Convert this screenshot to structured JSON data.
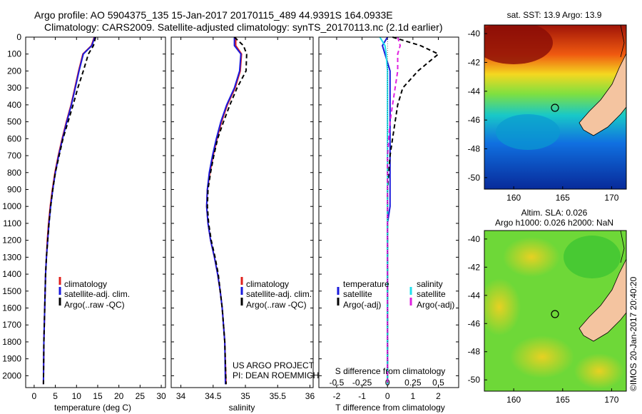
{
  "header": {
    "line1": "Argo profile: AO 5904375_135 15-Jan-2017 20170115_489 44.9391S 164.0933E",
    "line2": "Climatology: CARS2009. Satellite-adjusted climatology: synTS_20170113.nc (2.1d earlier)"
  },
  "colors": {
    "climatology": "#e0201c",
    "satellite": "#1a1adc",
    "argo": "#000000",
    "sal_satellite": "#22e0ee",
    "sal_argo": "#e020e0",
    "land": "#f4c4a0"
  },
  "chart_data": [
    {
      "type": "line",
      "ylabel_ticks": [
        "0",
        "100",
        "200",
        "300",
        "400",
        "500",
        "600",
        "700",
        "800",
        "900",
        "1000",
        "1100",
        "1200",
        "1300",
        "1400",
        "1500",
        "1600",
        "1700",
        "1800",
        "1900",
        "2000"
      ],
      "xlabel": "temperature (deg C)",
      "xticks": [
        "0",
        "5",
        "10",
        "15",
        "20",
        "25",
        "30"
      ],
      "xlim": [
        -2,
        31
      ],
      "ylim": [
        2070,
        0
      ],
      "legend": [
        "climatology",
        "satellite-adj. clim.",
        "Argo(..raw -QC)"
      ],
      "series": [
        {
          "name": "climatology",
          "style": "solid",
          "color": "#e0201c",
          "x": [
            14.2,
            13.5,
            11.5,
            10.5,
            9.6,
            8.7,
            7.6,
            6.6,
            5.7,
            4.9,
            4.3,
            3.8,
            3.4,
            3.1,
            2.9,
            2.7,
            2.6,
            2.5,
            2.4,
            2.3,
            2.2
          ],
          "y": [
            0,
            50,
            100,
            200,
            300,
            400,
            500,
            600,
            700,
            800,
            900,
            1000,
            1100,
            1200,
            1300,
            1400,
            1500,
            1600,
            1700,
            1800,
            2050
          ]
        },
        {
          "name": "satellite-adj. clim.",
          "style": "solid",
          "color": "#1a1adc",
          "x": [
            14.3,
            13.6,
            11.6,
            10.6,
            9.7,
            8.8,
            7.7,
            6.7,
            5.8,
            5.0,
            4.4,
            3.9,
            3.5,
            3.2,
            2.9,
            2.7,
            2.6,
            2.5,
            2.4,
            2.3,
            2.2
          ],
          "y": [
            0,
            50,
            100,
            200,
            300,
            400,
            500,
            600,
            700,
            800,
            900,
            1000,
            1100,
            1200,
            1300,
            1400,
            1500,
            1600,
            1700,
            1800,
            2050
          ]
        },
        {
          "name": "Argo(..raw -QC)",
          "style": "dashed",
          "color": "#000000",
          "x": [
            14.5,
            14.0,
            12.8,
            11.6,
            10.3,
            9.2,
            8.0,
            6.8,
            5.9,
            5.0,
            4.4,
            3.9,
            3.5,
            3.2,
            2.9,
            2.7,
            2.6,
            2.5,
            2.4,
            2.3,
            2.2
          ],
          "y": [
            0,
            50,
            100,
            200,
            300,
            400,
            500,
            600,
            700,
            800,
            900,
            1000,
            1100,
            1200,
            1300,
            1400,
            1500,
            1600,
            1700,
            1800,
            2050
          ]
        }
      ]
    },
    {
      "type": "line",
      "xlabel": "salinity",
      "xticks": [
        "34",
        "34.5",
        "35",
        "35.5",
        "36"
      ],
      "xlim": [
        33.85,
        36.05
      ],
      "ylim": [
        2070,
        0
      ],
      "legend": [
        "climatology",
        "satellite-adj. clim.",
        "Argo(..raw -QC)"
      ],
      "annotation": [
        "US ARGO PROJECT",
        "PI: DEAN ROEMMICH"
      ],
      "series": [
        {
          "name": "climatology",
          "style": "solid",
          "color": "#e0201c",
          "x": [
            34.85,
            34.85,
            34.94,
            34.92,
            34.84,
            34.72,
            34.63,
            34.56,
            34.5,
            34.45,
            34.41,
            34.4,
            34.42,
            34.46,
            34.52,
            34.57,
            34.61,
            34.64,
            34.66,
            34.68,
            34.7
          ],
          "y": [
            0,
            50,
            100,
            200,
            300,
            400,
            500,
            600,
            700,
            800,
            900,
            1000,
            1100,
            1200,
            1300,
            1400,
            1500,
            1600,
            1700,
            1800,
            2050
          ]
        },
        {
          "name": "satellite-adj. clim.",
          "style": "solid",
          "color": "#1a1adc",
          "x": [
            34.83,
            34.83,
            34.93,
            34.91,
            34.83,
            34.71,
            34.62,
            34.55,
            34.49,
            34.44,
            34.41,
            34.4,
            34.42,
            34.46,
            34.52,
            34.57,
            34.61,
            34.64,
            34.66,
            34.68,
            34.69
          ],
          "y": [
            0,
            50,
            100,
            200,
            300,
            400,
            500,
            600,
            700,
            800,
            900,
            1000,
            1100,
            1200,
            1300,
            1400,
            1500,
            1600,
            1700,
            1800,
            2050
          ]
        },
        {
          "name": "Argo(..raw -QC)",
          "style": "dashed",
          "color": "#000000",
          "x": [
            34.83,
            34.97,
            35.02,
            35.01,
            34.87,
            34.76,
            34.66,
            34.57,
            34.51,
            34.46,
            34.42,
            34.41,
            34.43,
            34.47,
            34.53,
            34.58,
            34.61,
            34.64,
            34.66,
            34.68,
            34.7
          ],
          "y": [
            0,
            50,
            100,
            200,
            300,
            400,
            500,
            600,
            700,
            800,
            900,
            1000,
            1100,
            1200,
            1300,
            1400,
            1500,
            1600,
            1700,
            1800,
            2050
          ]
        }
      ]
    },
    {
      "type": "line",
      "xlabel": "T difference from climatology",
      "xlabel2": "S difference from climatology",
      "xticks": [
        "-2",
        "-1",
        "0",
        "1",
        "2"
      ],
      "xticks_top": [
        "-0.5",
        "-0.25",
        "0",
        "0.25",
        "0.5"
      ],
      "xlim": [
        -2.7,
        2.8
      ],
      "ylim": [
        2070,
        0
      ],
      "legend_left_title": "temperature",
      "legend_right_title": "salinity",
      "legend": [
        "satellite",
        "Argo(-adj)",
        "satellite",
        "Argo(-adj)"
      ],
      "series": [
        {
          "name": "temperature satellite",
          "style": "solid",
          "color": "#1a1adc",
          "x": [
            0,
            -0.2,
            -0.1,
            0.1,
            0.1,
            0.1,
            0.1,
            0.1,
            0.1,
            0.1,
            0.1,
            0.1,
            0.0,
            0.0,
            0.0,
            0.0,
            0.0,
            0.0,
            0.0,
            0.0,
            0.0
          ],
          "y": [
            0,
            50,
            100,
            200,
            300,
            400,
            500,
            600,
            700,
            800,
            900,
            1000,
            1100,
            1200,
            1300,
            1400,
            1500,
            1600,
            1700,
            1800,
            2050
          ]
        },
        {
          "name": "temperature Argo(-adj)",
          "style": "dashed",
          "color": "#000000",
          "x": [
            0.2,
            1.3,
            2.0,
            1.2,
            0.6,
            0.4,
            0.3,
            0.2,
            0.1,
            0.05,
            0.0,
            0.0,
            0.0,
            0.0,
            0.0,
            0.0,
            0.0,
            0.0,
            0.0,
            0.0,
            0.0
          ],
          "y": [
            0,
            50,
            100,
            200,
            300,
            400,
            500,
            600,
            700,
            800,
            900,
            1000,
            1100,
            1200,
            1300,
            1400,
            1500,
            1600,
            1700,
            1800,
            2050
          ]
        },
        {
          "name": "salinity satellite",
          "style": "solid",
          "color": "#22e0ee",
          "x": [
            -0.3,
            -0.1,
            -0.05,
            0.0,
            0.0,
            0.0,
            0.0,
            0.0,
            0.0,
            0.0,
            0.0,
            0.0,
            0.0,
            0.0,
            0.0,
            0.0,
            0.0,
            0.0,
            0.0,
            0.0,
            0.0
          ],
          "y": [
            0,
            50,
            100,
            200,
            300,
            400,
            500,
            600,
            700,
            800,
            900,
            1000,
            1100,
            1200,
            1300,
            1400,
            1500,
            1600,
            1700,
            1800,
            2050
          ]
        },
        {
          "name": "salinity Argo(-adj)",
          "style": "dashed",
          "color": "#e020e0",
          "x": [
            0.4,
            0.5,
            0.4,
            0.4,
            0.3,
            0.2,
            0.1,
            0.05,
            0.0,
            0.0,
            0.0,
            0.0,
            0.0,
            0.0,
            0.0,
            0.0,
            0.0,
            0.0,
            0.0,
            0.0,
            0.0
          ],
          "y": [
            0,
            50,
            100,
            200,
            300,
            400,
            500,
            600,
            700,
            800,
            900,
            1000,
            1100,
            1200,
            1300,
            1400,
            1500,
            1600,
            1700,
            1800,
            2050
          ]
        }
      ]
    },
    {
      "type": "heatmap",
      "title": "sat. SST: 13.9 Argo: 13.9",
      "xticks": [
        "160",
        "165",
        "170"
      ],
      "yticks": [
        "-40",
        "-42",
        "-44",
        "-46",
        "-48",
        "-50"
      ],
      "xlim": [
        157,
        171.5
      ],
      "ylim": [
        -50.8,
        -39.4
      ],
      "marker": {
        "lon": 164.1,
        "lat": -44.9
      }
    },
    {
      "type": "heatmap",
      "title": "Altim. SLA: 0.026",
      "subtitle": "Argo h1000: 0.026 h2000: NaN",
      "xticks": [
        "160",
        "165",
        "170"
      ],
      "yticks": [
        "-40",
        "-42",
        "-44",
        "-46",
        "-48",
        "-50"
      ],
      "xlim": [
        157,
        171.5
      ],
      "ylim": [
        -50.8,
        -39.4
      ],
      "marker": {
        "lon": 164.1,
        "lat": -44.9
      },
      "side_label": "©IMOS 20-Jan-2017 20:40:20"
    }
  ]
}
